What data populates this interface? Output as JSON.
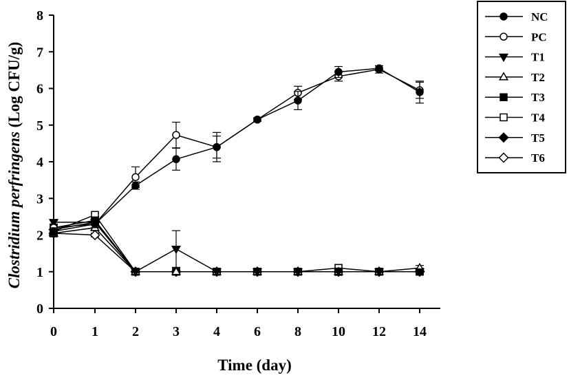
{
  "chart_data": {
    "type": "line",
    "title": "",
    "xlabel": "Time (day)",
    "ylabel_italic": "Clostridium perfringens",
    "ylabel_rest": " (Log CFU/g)",
    "categories": [
      "0",
      "1",
      "2",
      "3",
      "4",
      "6",
      "8",
      "10",
      "12",
      "14"
    ],
    "yticks": [
      "0",
      "1",
      "2",
      "3",
      "4",
      "5",
      "6",
      "7",
      "8"
    ],
    "ylim": [
      0,
      8
    ],
    "grid": false,
    "legend_position": "top-right",
    "series": [
      {
        "name": "NC",
        "marker": "circle",
        "fill": "filled",
        "values": [
          2.1,
          2.3,
          3.35,
          4.07,
          4.4,
          5.15,
          5.67,
          6.45,
          6.55,
          5.9
        ],
        "errors": [
          0.1,
          0.1,
          0.1,
          0.3,
          0.4,
          0.05,
          0.25,
          0.15,
          0.07,
          0.3
        ]
      },
      {
        "name": "PC",
        "marker": "circle",
        "fill": "open",
        "values": [
          2.2,
          2.3,
          3.58,
          4.73,
          4.4,
          5.15,
          5.88,
          6.33,
          6.52,
          5.95
        ],
        "errors": [
          0.1,
          0.1,
          0.28,
          0.35,
          0.3,
          0.05,
          0.18,
          0.13,
          0.1,
          0.22
        ]
      },
      {
        "name": "T1",
        "marker": "triangle-down",
        "fill": "filled",
        "values": [
          2.35,
          2.35,
          1.0,
          1.62,
          1.0,
          1.0,
          1.0,
          1.0,
          1.0,
          1.0
        ],
        "errors": [
          0.05,
          0.08,
          0,
          0.5,
          0,
          0,
          0,
          0,
          0,
          0
        ]
      },
      {
        "name": "T2",
        "marker": "triangle-up",
        "fill": "open",
        "values": [
          2.05,
          2.2,
          1.0,
          1.0,
          1.0,
          1.0,
          1.0,
          1.0,
          1.0,
          1.1
        ],
        "errors": [
          0.1,
          0.08,
          0,
          0,
          0,
          0,
          0,
          0.1,
          0,
          0.07
        ]
      },
      {
        "name": "T3",
        "marker": "square",
        "fill": "filled",
        "values": [
          2.2,
          2.4,
          1.0,
          1.0,
          1.0,
          1.0,
          1.0,
          1.0,
          1.0,
          1.0
        ],
        "errors": [
          0.05,
          0.05,
          0,
          0,
          0,
          0,
          0,
          0,
          0,
          0
        ]
      },
      {
        "name": "T4",
        "marker": "square",
        "fill": "open",
        "values": [
          2.1,
          2.55,
          1.0,
          1.0,
          1.0,
          1.0,
          1.0,
          1.1,
          1.0,
          1.0
        ],
        "errors": [
          0.05,
          0.05,
          0,
          0,
          0,
          0,
          0,
          0.1,
          0,
          0
        ]
      },
      {
        "name": "T5",
        "marker": "diamond",
        "fill": "filled",
        "values": [
          2.15,
          2.35,
          1.0,
          1.0,
          1.0,
          1.0,
          1.0,
          1.0,
          1.0,
          1.0
        ],
        "errors": [
          0.05,
          0.05,
          0,
          0,
          0,
          0,
          0,
          0,
          0,
          0
        ]
      },
      {
        "name": "T6",
        "marker": "diamond",
        "fill": "open",
        "values": [
          2.05,
          2.0,
          1.0,
          1.0,
          1.0,
          1.0,
          1.0,
          1.0,
          1.0,
          1.0
        ],
        "errors": [
          0.05,
          0.05,
          0,
          0,
          0,
          0,
          0,
          0,
          0,
          0
        ]
      }
    ]
  }
}
